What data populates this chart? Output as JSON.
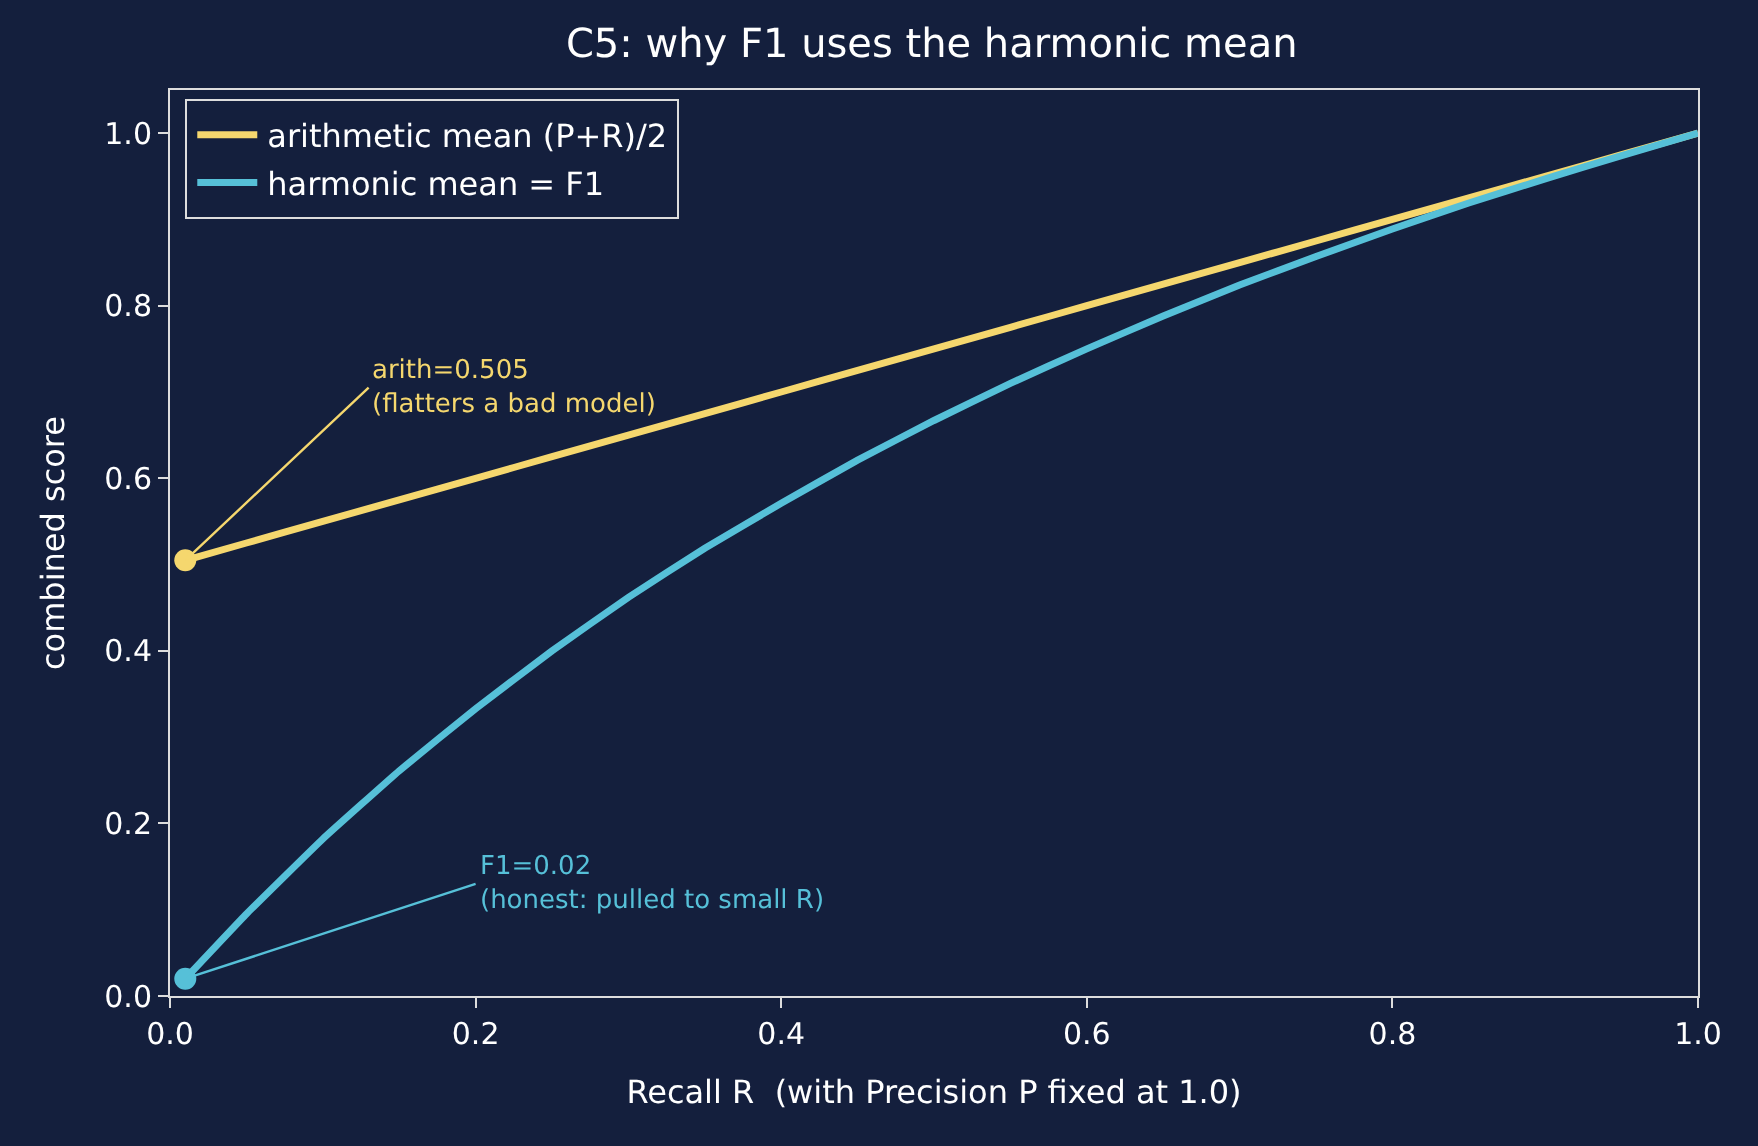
{
  "chart_data": {
    "type": "line",
    "title": "C5: why F1 uses the harmonic mean",
    "xlabel": "Recall R  (with Precision P fixed at 1.0)",
    "ylabel": "combined score",
    "x": [
      0.01,
      0.05,
      0.1,
      0.15,
      0.2,
      0.25,
      0.3,
      0.35,
      0.4,
      0.45,
      0.5,
      0.55,
      0.6,
      0.65,
      0.7,
      0.75,
      0.8,
      0.85,
      0.9,
      0.95,
      1.0
    ],
    "series": [
      {
        "name": "arithmetic mean (P+R)/2",
        "color": "#f5d76e",
        "values": [
          0.505,
          0.525,
          0.55,
          0.575,
          0.6,
          0.625,
          0.65,
          0.675,
          0.7,
          0.725,
          0.75,
          0.775,
          0.8,
          0.825,
          0.85,
          0.875,
          0.9,
          0.925,
          0.95,
          0.975,
          1.0
        ]
      },
      {
        "name": "harmonic mean = F1",
        "color": "#56c0d8",
        "values": [
          0.02,
          0.095,
          0.182,
          0.261,
          0.333,
          0.4,
          0.462,
          0.519,
          0.571,
          0.621,
          0.667,
          0.71,
          0.75,
          0.788,
          0.824,
          0.857,
          0.889,
          0.919,
          0.947,
          0.974,
          1.0
        ]
      },
      {
        "type": "scatter",
        "color": "#f5d76e",
        "x": [
          0.01
        ],
        "values": [
          0.505
        ]
      },
      {
        "type": "scatter",
        "color": "#56c0d8",
        "x": [
          0.01
        ],
        "values": [
          0.02
        ]
      }
    ],
    "annotations": [
      {
        "text": "arith=0.505\n(flatters a bad model)",
        "x": 0.01,
        "y": 0.505
      },
      {
        "text": "F1=0.02\n(honest: pulled to small R)",
        "x": 0.01,
        "y": 0.02
      }
    ],
    "xlim": [
      0,
      1.0
    ],
    "ylim": [
      0,
      1.05
    ],
    "xticks": [
      {
        "value": 0,
        "label": "0.0"
      },
      0.2,
      0.4,
      0.6,
      0.8,
      {
        "value": 1,
        "label": "1.0"
      }
    ],
    "yticks": [
      {
        "value": 0,
        "label": "0.0"
      },
      0.2,
      0.4,
      0.6,
      0.8,
      {
        "value": 1,
        "label": "1.0"
      }
    ],
    "grid": false,
    "legend": "top left",
    "line_style": "solid"
  }
}
